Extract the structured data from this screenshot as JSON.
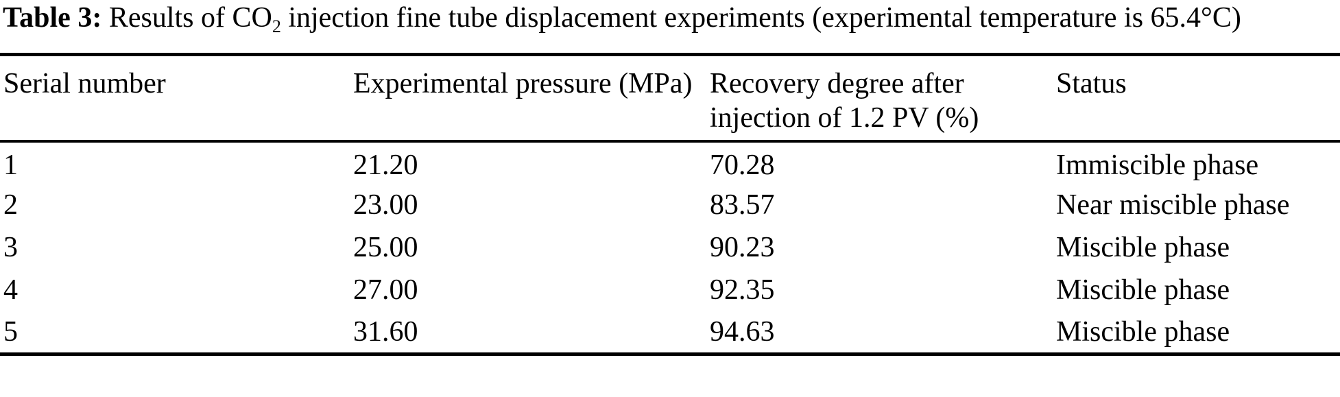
{
  "page": {
    "background_color": "#ffffff",
    "text_color": "#000000"
  },
  "caption": {
    "label": "Table 3:",
    "text_before_sub": " Results of CO",
    "subscript": "2",
    "text_after_sub": " injection fine tube displacement experiments (experimental temperature is 65.4°C)"
  },
  "table": {
    "columns": [
      "Serial number",
      "Experimental pressure (MPa)",
      "Recovery degree after injection of 1.2 PV (%)",
      "Status"
    ],
    "rows": [
      {
        "serial": "1",
        "pressure": "21.20",
        "recovery": "70.28",
        "status": "Immiscible phase"
      },
      {
        "serial": "2",
        "pressure": "23.00",
        "recovery": "83.57",
        "status": "Near miscible phase"
      },
      {
        "serial": "3",
        "pressure": "25.00",
        "recovery": "90.23",
        "status": "Miscible phase"
      },
      {
        "serial": "4",
        "pressure": "27.00",
        "recovery": "92.35",
        "status": "Miscible phase"
      },
      {
        "serial": "5",
        "pressure": "31.60",
        "recovery": "94.63",
        "status": "Miscible phase"
      }
    ]
  }
}
